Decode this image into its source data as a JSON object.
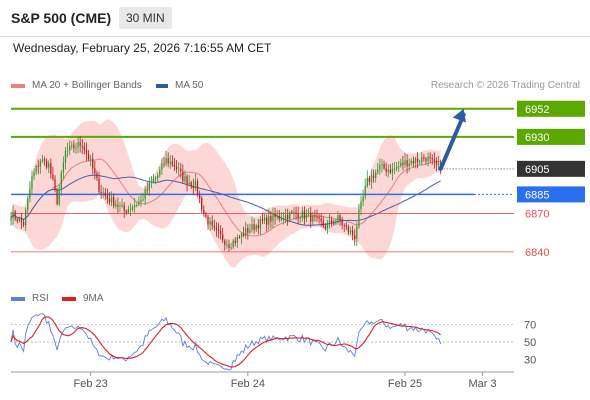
{
  "header": {
    "title": "S&P 500 (CME)",
    "timeframe": "30 MIN",
    "datetime": "Wednesday, February 25, 2026 7:16:55 AM CET"
  },
  "legend": {
    "ma20": "MA 20 + Bollinger Bands",
    "ma50": "MA 50",
    "rsi": "RSI",
    "rsi_ma": "9MA",
    "credit": "Research © 2026 Trading Central"
  },
  "colors": {
    "candle": "#2e9a2e",
    "candle_down": "#b32020",
    "ma20": "#e88080",
    "band_fill": "#fcd7d5",
    "ma50": "#4a5fa5",
    "target": "#5aa800",
    "pivot": "#2a6ff0",
    "support": "#e65050",
    "current": "#333333",
    "arrow": "#2d5aa0",
    "rsi": "#5a7fd8",
    "rsi_ma": "#e02020"
  },
  "chart_data": [
    {
      "type": "candlestick",
      "name": "price",
      "y_range": [
        6818,
        6962
      ],
      "x_range": [
        0,
        240
      ],
      "x_ticks": [
        {
          "label": "Feb 23",
          "x": 38
        },
        {
          "label": "Feb 24",
          "x": 113
        },
        {
          "label": "Feb 25",
          "x": 188
        },
        {
          "label": "Mar 3",
          "x": 225
        }
      ],
      "levels": [
        {
          "value": 6952,
          "label": "6952",
          "kind": "target"
        },
        {
          "value": 6930,
          "label": "6930",
          "kind": "target"
        },
        {
          "value": 6905,
          "label": "6905",
          "kind": "current"
        },
        {
          "value": 6885,
          "label": "6885",
          "kind": "pivot"
        },
        {
          "value": 6870,
          "label": "6870",
          "kind": "support"
        },
        {
          "value": 6840,
          "label": "6840",
          "kind": "support"
        }
      ],
      "anchors": [
        [
          0,
          6870
        ],
        [
          6,
          6862
        ],
        [
          10,
          6898
        ],
        [
          14,
          6912
        ],
        [
          18,
          6908
        ],
        [
          22,
          6880
        ],
        [
          26,
          6918
        ],
        [
          30,
          6922
        ],
        [
          34,
          6925
        ],
        [
          38,
          6910
        ],
        [
          42,
          6890
        ],
        [
          46,
          6882
        ],
        [
          50,
          6878
        ],
        [
          54,
          6872
        ],
        [
          58,
          6876
        ],
        [
          62,
          6880
        ],
        [
          66,
          6892
        ],
        [
          70,
          6900
        ],
        [
          74,
          6912
        ],
        [
          78,
          6908
        ],
        [
          82,
          6898
        ],
        [
          88,
          6892
        ],
        [
          92,
          6870
        ],
        [
          96,
          6858
        ],
        [
          100,
          6852
        ],
        [
          104,
          6846
        ],
        [
          108,
          6850
        ],
        [
          112,
          6856
        ],
        [
          118,
          6862
        ],
        [
          124,
          6866
        ],
        [
          130,
          6868
        ],
        [
          136,
          6870
        ],
        [
          142,
          6868
        ],
        [
          146,
          6864
        ],
        [
          150,
          6860
        ],
        [
          156,
          6866
        ],
        [
          160,
          6858
        ],
        [
          164,
          6852
        ],
        [
          166,
          6870
        ],
        [
          170,
          6895
        ],
        [
          176,
          6906
        ],
        [
          182,
          6904
        ],
        [
          188,
          6910
        ],
        [
          194,
          6912
        ],
        [
          198,
          6914
        ],
        [
          202,
          6908
        ],
        [
          205,
          6905
        ]
      ],
      "forecast": [
        [
          205,
          6905
        ],
        [
          216,
          6952
        ]
      ]
    },
    {
      "type": "line",
      "name": "rsi",
      "y_range": [
        20,
        80
      ],
      "y_ticks": [
        70,
        50,
        30
      ],
      "reference_lines": [
        70,
        50
      ]
    }
  ]
}
